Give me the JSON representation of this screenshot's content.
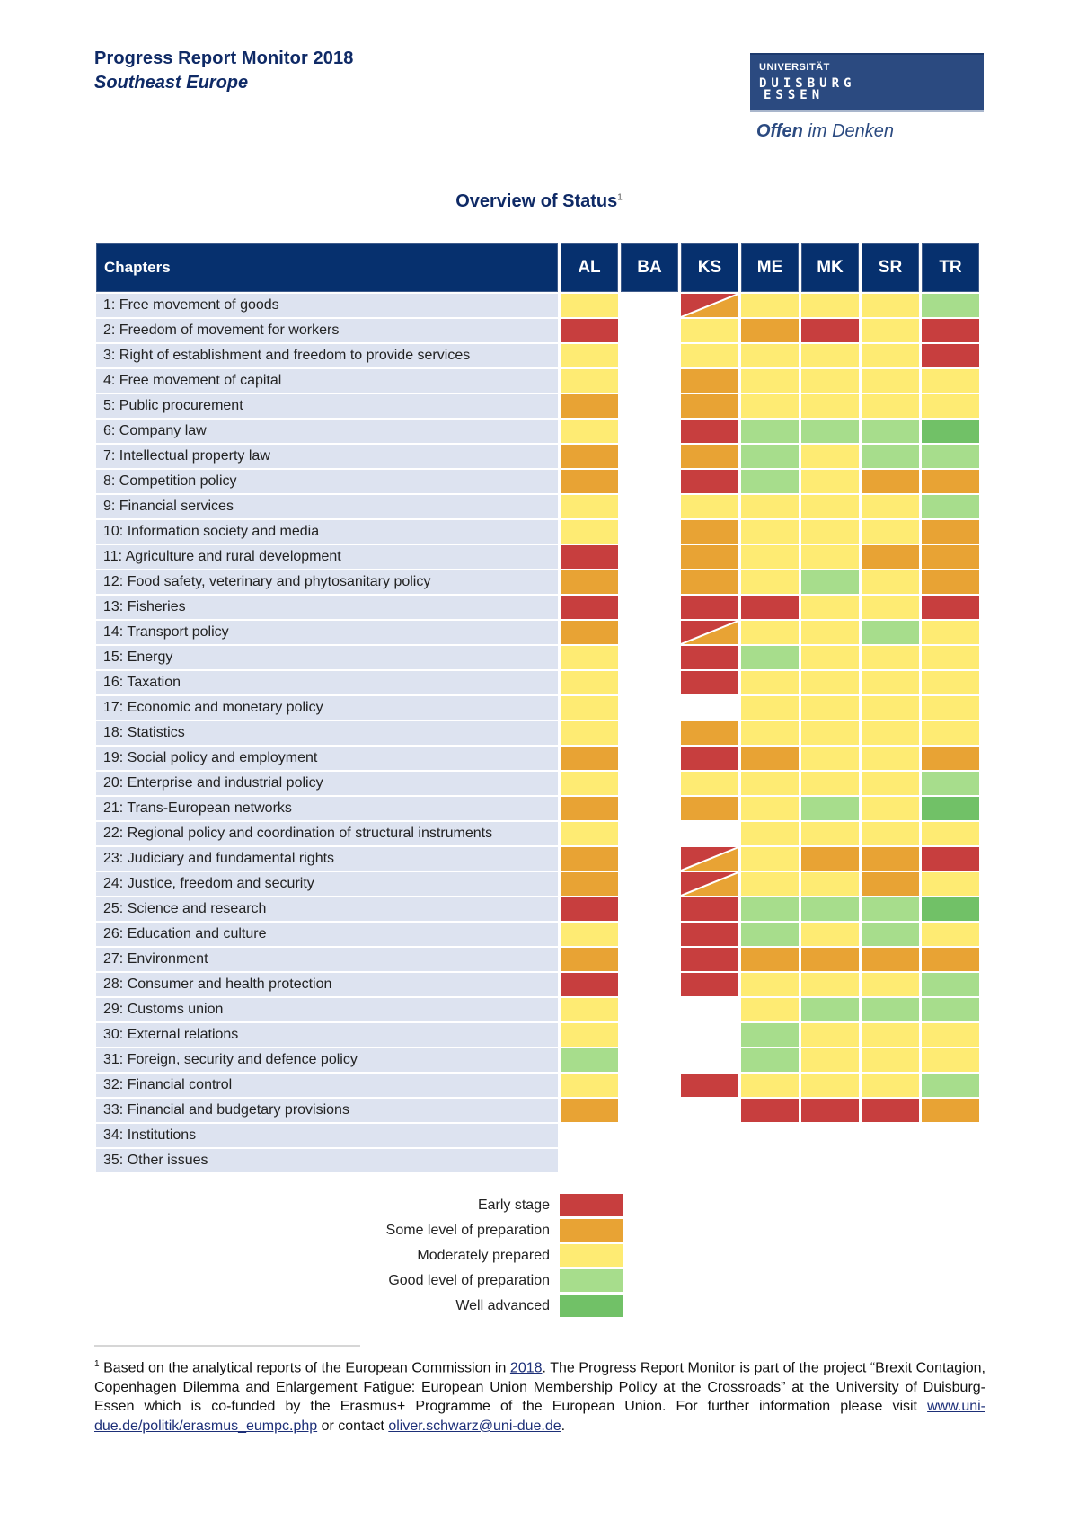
{
  "header": {
    "title": "Progress Report Monitor 2018",
    "subtitle": "Southeast Europe",
    "logo": {
      "line1": "UNIVERSITÄT",
      "line2": "DUISBURG",
      "line3": "ESSEN",
      "tagline_bold": "Offen",
      "tagline_rest": " im Denken"
    }
  },
  "section_title": "Overview of Status",
  "section_title_footnote_mark": "1",
  "colors": {
    "header_bg": "#06306e",
    "row_bg": "#dde3f0",
    "early": "#c73e3e",
    "some": "#e8a334",
    "moderate": "#feeb73",
    "good": "#a7dd8c",
    "well": "#71c167"
  },
  "legend": [
    {
      "key": "early",
      "label": "Early stage"
    },
    {
      "key": "some",
      "label": "Some level of preparation"
    },
    {
      "key": "moderate",
      "label": "Moderately prepared"
    },
    {
      "key": "good",
      "label": "Good level of preparation"
    },
    {
      "key": "well",
      "label": "Well advanced"
    }
  ],
  "chart_data": {
    "type": "heatmap",
    "title": "Overview of Status",
    "row_header": "Chapters",
    "columns": [
      "AL",
      "BA",
      "KS",
      "ME",
      "MK",
      "SR",
      "TR"
    ],
    "scale": [
      "early",
      "some",
      "moderate",
      "good",
      "well"
    ],
    "note": "Cells like 'early/some' are split diagonally (two statuses); empty string = no assessment",
    "rows": [
      {
        "chapter": "1: Free movement of goods",
        "values": [
          "moderate",
          "",
          "early/some",
          "moderate",
          "moderate",
          "moderate",
          "good"
        ]
      },
      {
        "chapter": "2: Freedom of movement for workers",
        "values": [
          "early",
          "",
          "moderate",
          "some",
          "early",
          "moderate",
          "early"
        ]
      },
      {
        "chapter": "3: Right of establishment and freedom to provide services",
        "values": [
          "moderate",
          "",
          "moderate",
          "moderate",
          "moderate",
          "moderate",
          "early"
        ]
      },
      {
        "chapter": "4: Free movement of capital",
        "values": [
          "moderate",
          "",
          "some",
          "moderate",
          "moderate",
          "moderate",
          "moderate"
        ]
      },
      {
        "chapter": "5: Public procurement",
        "values": [
          "some",
          "",
          "some",
          "moderate",
          "moderate",
          "moderate",
          "moderate"
        ]
      },
      {
        "chapter": "6: Company law",
        "values": [
          "moderate",
          "",
          "early",
          "good",
          "good",
          "good",
          "well"
        ]
      },
      {
        "chapter": "7: Intellectual property law",
        "values": [
          "some",
          "",
          "some",
          "good",
          "moderate",
          "good",
          "good"
        ]
      },
      {
        "chapter": "8: Competition policy",
        "values": [
          "some",
          "",
          "early",
          "good",
          "moderate",
          "some",
          "some"
        ]
      },
      {
        "chapter": "9: Financial services",
        "values": [
          "moderate",
          "",
          "moderate",
          "moderate",
          "moderate",
          "moderate",
          "good"
        ]
      },
      {
        "chapter": "10: Information society and media",
        "values": [
          "moderate",
          "",
          "some",
          "moderate",
          "moderate",
          "moderate",
          "some"
        ]
      },
      {
        "chapter": "11: Agriculture and rural development",
        "values": [
          "early",
          "",
          "some",
          "moderate",
          "moderate",
          "some",
          "some"
        ]
      },
      {
        "chapter": "12: Food safety, veterinary and phytosanitary policy",
        "values": [
          "some",
          "",
          "some",
          "moderate",
          "good",
          "moderate",
          "some"
        ]
      },
      {
        "chapter": "13: Fisheries",
        "values": [
          "early",
          "",
          "early",
          "early",
          "moderate",
          "moderate",
          "early"
        ]
      },
      {
        "chapter": "14: Transport policy",
        "values": [
          "some",
          "",
          "early/some",
          "moderate",
          "moderate",
          "good",
          "moderate"
        ]
      },
      {
        "chapter": "15: Energy",
        "values": [
          "moderate",
          "",
          "early",
          "good",
          "moderate",
          "moderate",
          "moderate"
        ]
      },
      {
        "chapter": "16: Taxation",
        "values": [
          "moderate",
          "",
          "early",
          "moderate",
          "moderate",
          "moderate",
          "moderate"
        ]
      },
      {
        "chapter": "17: Economic and monetary policy",
        "values": [
          "moderate",
          "",
          "",
          "moderate",
          "moderate",
          "moderate",
          "moderate"
        ]
      },
      {
        "chapter": "18: Statistics",
        "values": [
          "moderate",
          "",
          "some",
          "moderate",
          "moderate",
          "moderate",
          "moderate"
        ]
      },
      {
        "chapter": "19: Social policy and employment",
        "values": [
          "some",
          "",
          "early",
          "some",
          "moderate",
          "moderate",
          "some"
        ]
      },
      {
        "chapter": "20: Enterprise and industrial policy",
        "values": [
          "moderate",
          "",
          "moderate",
          "moderate",
          "moderate",
          "moderate",
          "good"
        ]
      },
      {
        "chapter": "21: Trans-European networks",
        "values": [
          "some",
          "",
          "some",
          "moderate",
          "good",
          "moderate",
          "well"
        ]
      },
      {
        "chapter": "22: Regional policy and coordination of structural instruments",
        "values": [
          "moderate",
          "",
          "",
          "moderate",
          "moderate",
          "moderate",
          "moderate"
        ]
      },
      {
        "chapter": "23: Judiciary and fundamental rights",
        "values": [
          "some",
          "",
          "early/some",
          "moderate",
          "some",
          "some",
          "early"
        ]
      },
      {
        "chapter": "24: Justice, freedom and security",
        "values": [
          "some",
          "",
          "early/some",
          "moderate",
          "moderate",
          "some",
          "moderate"
        ]
      },
      {
        "chapter": "25: Science and research",
        "values": [
          "early",
          "",
          "early",
          "good",
          "good",
          "good",
          "well"
        ]
      },
      {
        "chapter": "26: Education and culture",
        "values": [
          "moderate",
          "",
          "early",
          "good",
          "moderate",
          "good",
          "moderate"
        ]
      },
      {
        "chapter": "27: Environment",
        "values": [
          "some",
          "",
          "early",
          "some",
          "some",
          "some",
          "some"
        ]
      },
      {
        "chapter": "28: Consumer and health protection",
        "values": [
          "early",
          "",
          "early",
          "moderate",
          "moderate",
          "moderate",
          "good"
        ]
      },
      {
        "chapter": "29: Customs union",
        "values": [
          "moderate",
          "",
          "",
          "moderate",
          "good",
          "good",
          "good"
        ]
      },
      {
        "chapter": "30: External relations",
        "values": [
          "moderate",
          "",
          "",
          "good",
          "moderate",
          "moderate",
          "moderate"
        ]
      },
      {
        "chapter": "31: Foreign, security and defence policy",
        "values": [
          "good",
          "",
          "",
          "good",
          "moderate",
          "moderate",
          "moderate"
        ]
      },
      {
        "chapter": "32: Financial control",
        "values": [
          "moderate",
          "",
          "early",
          "moderate",
          "moderate",
          "moderate",
          "good"
        ]
      },
      {
        "chapter": "33: Financial and budgetary provisions",
        "values": [
          "some",
          "",
          "",
          "early",
          "early",
          "early",
          "some"
        ]
      },
      {
        "chapter": "34: Institutions",
        "values": [
          "",
          "",
          "",
          "",
          "",
          "",
          ""
        ]
      },
      {
        "chapter": "35: Other issues",
        "values": [
          "",
          "",
          "",
          "",
          "",
          "",
          ""
        ]
      }
    ]
  },
  "footnote": {
    "mark": "1",
    "text1": " Based on the analytical reports of the European Commission in ",
    "link1": "2018",
    "text2": ". The Progress Report Monitor is part of the project “Brexit Contagion, Copenhagen Dilemma and Enlargement Fatigue: European Union Membership Policy at the Crossroads” at the University of Duisburg-Essen which is co-funded by the Erasmus+ Programme of the European Union. For further information please visit ",
    "link2": "www.uni-due.de/politik/erasmus_eumpc.php",
    "text3": " or contact ",
    "link3": "oliver.schwarz@uni-due.de",
    "text4": "."
  }
}
